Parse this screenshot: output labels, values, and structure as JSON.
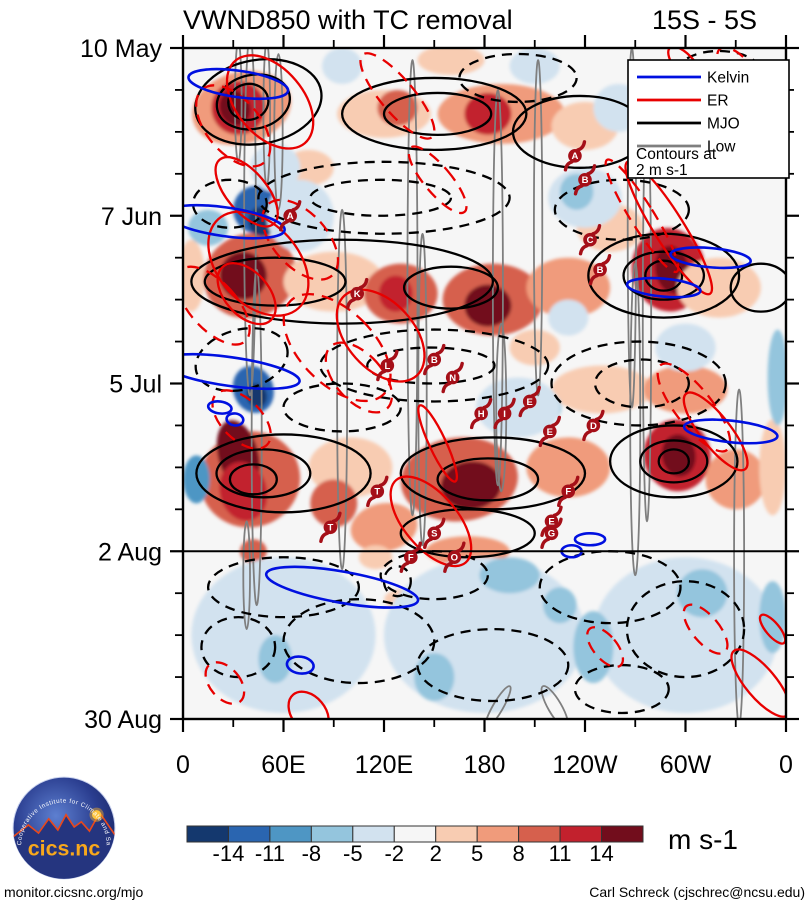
{
  "header": {
    "title": "VWND850 with TC removal",
    "subtitle": "15S - 5S"
  },
  "footer": {
    "left": "monitor.cicsnc.org/mjo",
    "right": "Carl Schreck (cjschrec@ncsu.edu)"
  },
  "logo": {
    "text": "cics.nc",
    "ring_text": "Cooperative Institute for Climate and Satellites"
  },
  "chart_data": {
    "type": "heatmap",
    "subtype": "hovmoller-time-longitude",
    "title": "VWND850 with TC removal",
    "latitude_band": "15S - 5S",
    "x": {
      "range": [
        0,
        360
      ],
      "ticks": [
        0,
        60,
        120,
        180,
        240,
        300,
        360
      ],
      "tick_labels": [
        "0",
        "60E",
        "120E",
        "180",
        "120W",
        "60W",
        "0"
      ],
      "minor_step": 30
    },
    "y": {
      "range_days": [
        0,
        112
      ],
      "ticks_days": [
        0,
        28,
        56,
        84,
        112
      ],
      "tick_labels": [
        "10 May",
        "7 Jun",
        "5 Jul",
        "2 Aug",
        "30 Aug"
      ],
      "minor_step_days": 7
    },
    "analysis_forecast_divider_day": 84,
    "colorbar": {
      "units": "m s-1",
      "boundaries": [
        -14,
        -11,
        -8,
        -5,
        -2,
        2,
        5,
        8,
        11,
        14
      ],
      "colors": [
        "#14386E",
        "#2A65B0",
        "#4E96C4",
        "#94C5DD",
        "#D2E2EF",
        "#F6F6F6",
        "#F8CCB2",
        "#F09B7B",
        "#D6604D",
        "#C2212D",
        "#720D1C"
      ]
    },
    "legend": {
      "entries": [
        {
          "label": "Kelvin",
          "color": "#0010E0"
        },
        {
          "label": "ER",
          "color": "#E80000"
        },
        {
          "label": "MJO",
          "color": "#000000"
        },
        {
          "label": "Low",
          "color": "#7F7F7F"
        }
      ],
      "note": [
        "Contours at",
        "2 m s-1"
      ]
    },
    "shading": [
      [
        35,
        10,
        30,
        6,
        -15,
        8
      ],
      [
        33,
        10,
        16,
        4.5,
        -20,
        10
      ],
      [
        31,
        10,
        9,
        3,
        -20,
        11
      ],
      [
        120,
        11,
        28,
        4,
        0,
        7
      ],
      [
        128,
        10,
        12,
        3,
        0,
        9
      ],
      [
        190,
        11,
        38,
        5,
        0,
        8
      ],
      [
        182,
        11,
        14,
        3.5,
        0,
        10
      ],
      [
        240,
        13,
        20,
        4,
        0,
        7
      ],
      [
        320,
        12,
        30,
        4,
        0,
        7
      ],
      [
        335,
        5,
        12,
        3,
        0,
        8
      ],
      [
        160,
        2,
        20,
        2.5,
        0,
        7
      ],
      [
        75,
        20,
        15,
        3,
        0,
        7
      ],
      [
        5,
        38,
        8,
        6,
        0,
        7
      ],
      [
        40,
        38,
        28,
        7,
        -20,
        9
      ],
      [
        36,
        38,
        14,
        4,
        -25,
        11
      ],
      [
        90,
        39,
        30,
        5,
        0,
        7
      ],
      [
        130,
        41,
        22,
        5,
        0,
        9
      ],
      [
        127,
        41,
        10,
        3,
        0,
        10
      ],
      [
        185,
        42,
        30,
        6,
        0,
        9
      ],
      [
        182,
        43,
        14,
        3.5,
        0,
        11
      ],
      [
        230,
        40,
        25,
        5,
        0,
        8
      ],
      [
        255,
        30,
        20,
        4,
        0,
        7
      ],
      [
        290,
        37,
        22,
        7,
        -10,
        10
      ],
      [
        292,
        37,
        10,
        4,
        -10,
        11
      ],
      [
        320,
        40,
        25,
        5,
        0,
        7
      ],
      [
        250,
        57,
        30,
        4,
        0,
        7
      ],
      [
        300,
        57,
        25,
        4,
        0,
        8
      ],
      [
        210,
        50,
        15,
        3,
        0,
        7
      ],
      [
        40,
        72,
        30,
        8,
        -15,
        9
      ],
      [
        33,
        68,
        12,
        6,
        -15,
        11
      ],
      [
        36,
        74,
        14,
        5,
        -15,
        10
      ],
      [
        100,
        70,
        25,
        5,
        0,
        7
      ],
      [
        90,
        76,
        14,
        4,
        0,
        9
      ],
      [
        165,
        72,
        35,
        7,
        -5,
        9
      ],
      [
        172,
        73,
        18,
        4,
        -5,
        11
      ],
      [
        230,
        70,
        25,
        5,
        0,
        8
      ],
      [
        295,
        68,
        20,
        6,
        -10,
        10
      ],
      [
        296,
        68,
        10,
        3.5,
        -10,
        11
      ],
      [
        330,
        72,
        18,
        5,
        0,
        8
      ],
      [
        352,
        70,
        8,
        8,
        0,
        7
      ],
      [
        120,
        80,
        20,
        4,
        -10,
        8
      ],
      [
        170,
        84,
        25,
        2.5,
        0,
        8
      ],
      [
        115,
        85,
        10,
        2,
        0,
        7
      ],
      [
        42,
        84,
        8,
        2,
        0,
        9
      ],
      [
        145,
        93,
        25,
        2.5,
        10,
        7
      ],
      [
        315,
        100,
        8,
        2.5,
        0,
        7
      ],
      [
        44,
        27,
        14,
        4,
        -20,
        2
      ],
      [
        47,
        29,
        8,
        2.5,
        -20,
        1
      ],
      [
        15,
        30,
        12,
        3,
        0,
        4
      ],
      [
        70,
        28,
        20,
        6,
        0,
        5
      ],
      [
        55,
        20,
        15,
        4,
        0,
        5
      ],
      [
        240,
        25,
        22,
        5,
        0,
        5
      ],
      [
        235,
        24,
        10,
        3,
        0,
        4
      ],
      [
        42,
        57,
        12,
        4,
        -20,
        2
      ],
      [
        44,
        58,
        6,
        2,
        -20,
        1
      ],
      [
        8,
        72,
        8,
        4,
        0,
        3
      ],
      [
        260,
        10,
        15,
        4,
        0,
        5
      ],
      [
        310,
        17,
        14,
        4,
        0,
        4
      ],
      [
        210,
        3,
        15,
        3,
        0,
        5
      ],
      [
        95,
        3,
        12,
        3,
        0,
        5
      ],
      [
        355,
        55,
        6,
        8,
        0,
        4
      ],
      [
        300,
        50,
        18,
        4,
        0,
        5
      ],
      [
        230,
        45,
        12,
        3,
        0,
        5
      ],
      [
        212,
        60,
        14,
        3,
        0,
        4
      ],
      [
        200,
        60,
        25,
        5,
        0,
        5
      ],
      [
        60,
        98,
        55,
        13,
        0,
        5
      ],
      [
        180,
        98,
        60,
        13,
        0,
        5
      ],
      [
        300,
        98,
        55,
        13,
        0,
        5
      ],
      [
        195,
        88,
        18,
        3,
        0,
        4
      ],
      [
        55,
        102,
        10,
        4,
        0,
        4
      ],
      [
        150,
        105,
        12,
        4,
        0,
        4
      ],
      [
        245,
        100,
        12,
        6,
        0,
        4
      ],
      [
        310,
        91,
        15,
        4,
        0,
        4
      ],
      [
        225,
        93,
        10,
        3,
        0,
        4
      ],
      [
        352,
        95,
        8,
        6,
        0,
        4
      ]
    ],
    "contours": {
      "mjo": [
        [
          45,
          9,
          38,
          7,
          -10,
          "s"
        ],
        [
          42,
          9,
          22,
          4.5,
          -12,
          "s"
        ],
        [
          39,
          9,
          12,
          3,
          -12,
          "s"
        ],
        [
          150,
          11,
          55,
          6,
          0,
          "s"
        ],
        [
          152,
          11,
          32,
          3.5,
          0,
          "s"
        ],
        [
          237,
          14,
          40,
          6,
          0,
          "s"
        ],
        [
          320,
          12,
          28,
          5,
          0,
          "s"
        ],
        [
          200,
          5,
          35,
          4,
          0,
          "d"
        ],
        [
          320,
          4,
          25,
          3.5,
          0,
          "d"
        ],
        [
          120,
          25,
          75,
          6,
          0,
          "d"
        ],
        [
          118,
          25,
          42,
          3,
          0,
          "d"
        ],
        [
          262,
          27,
          40,
          5,
          0,
          "d"
        ],
        [
          28,
          26,
          22,
          4,
          0,
          "d"
        ],
        [
          95,
          39,
          90,
          7,
          0,
          "s"
        ],
        [
          55,
          39,
          42,
          4,
          0,
          "s"
        ],
        [
          160,
          40,
          28,
          3.5,
          0,
          "s"
        ],
        [
          287,
          38,
          45,
          7,
          0,
          "s"
        ],
        [
          287,
          38,
          24,
          4,
          0,
          "s"
        ],
        [
          287,
          38,
          11,
          2.5,
          0,
          "s"
        ],
        [
          345,
          40,
          18,
          4,
          0,
          "s"
        ],
        [
          150,
          53,
          68,
          6,
          0,
          "d"
        ],
        [
          148,
          53,
          38,
          3,
          0,
          "d"
        ],
        [
          272,
          56,
          52,
          7,
          0,
          "d"
        ],
        [
          274,
          56,
          28,
          4,
          0,
          "d"
        ],
        [
          35,
          52,
          28,
          5,
          -15,
          "d"
        ],
        [
          95,
          60,
          35,
          4,
          0,
          "d"
        ],
        [
          60,
          71,
          52,
          6.5,
          0,
          "s"
        ],
        [
          48,
          71,
          28,
          4,
          0,
          "s"
        ],
        [
          42,
          72,
          14,
          2.5,
          0,
          "s"
        ],
        [
          185,
          71,
          55,
          6,
          0,
          "s"
        ],
        [
          182,
          72,
          30,
          3.5,
          0,
          "s"
        ],
        [
          293,
          69,
          38,
          6,
          0,
          "s"
        ],
        [
          293,
          69,
          20,
          3.5,
          0,
          "s"
        ],
        [
          293,
          69,
          9,
          2,
          0,
          "s"
        ],
        [
          170,
          81,
          40,
          4,
          0,
          "s"
        ],
        [
          60,
          90,
          45,
          5,
          0,
          "d"
        ],
        [
          150,
          88,
          32,
          4,
          0,
          "d"
        ],
        [
          128,
          89,
          8,
          2.5,
          0,
          "d"
        ],
        [
          255,
          90,
          42,
          6,
          0,
          "d"
        ],
        [
          105,
          99,
          45,
          7,
          0,
          "d"
        ],
        [
          33,
          100,
          22,
          5,
          0,
          "d"
        ],
        [
          185,
          103,
          45,
          6,
          0,
          "d"
        ],
        [
          300,
          97,
          35,
          8,
          0,
          "d"
        ],
        [
          262,
          107,
          28,
          4,
          0,
          "d"
        ]
      ],
      "er": [
        [
          52,
          9,
          20,
          9,
          -40,
          "s"
        ],
        [
          30,
          13,
          16,
          8,
          -40,
          "d"
        ],
        [
          128,
          8,
          10,
          9,
          -40,
          "d"
        ],
        [
          300,
          3,
          6,
          4,
          -40,
          "s"
        ],
        [
          332,
          4,
          8,
          5,
          -40,
          "d"
        ],
        [
          152,
          22,
          8,
          7,
          -40,
          "d"
        ],
        [
          38,
          24,
          12,
          7,
          -40,
          "s"
        ],
        [
          45,
          36,
          24,
          10,
          -42,
          "s"
        ],
        [
          38,
          41,
          13,
          6,
          -42,
          "s"
        ],
        [
          70,
          32,
          16,
          8,
          -42,
          "d"
        ],
        [
          18,
          43,
          14,
          8,
          -42,
          "d"
        ],
        [
          92,
          50,
          22,
          11,
          -45,
          "d"
        ],
        [
          118,
          48,
          20,
          9,
          -42,
          "s"
        ],
        [
          105,
          55,
          14,
          7,
          -42,
          "d"
        ],
        [
          35,
          62,
          12,
          6,
          -45,
          "d"
        ],
        [
          152,
          66,
          5,
          7,
          -25,
          "s"
        ],
        [
          148,
          79,
          16,
          9,
          -40,
          "s"
        ],
        [
          290,
          30,
          9,
          13,
          -32,
          "s"
        ],
        [
          274,
          28,
          7,
          11,
          -32,
          "d"
        ],
        [
          305,
          60,
          11,
          9,
          -38,
          "d"
        ],
        [
          318,
          64,
          9,
          8,
          -38,
          "s"
        ],
        [
          252,
          100,
          7,
          4,
          -40,
          "d"
        ],
        [
          312,
          97,
          8,
          5,
          -40,
          "d"
        ],
        [
          345,
          106,
          9,
          7,
          -40,
          "s"
        ],
        [
          352,
          97,
          4,
          3,
          -40,
          "s"
        ],
        [
          25,
          106,
          9,
          4,
          -40,
          "d"
        ],
        [
          75,
          111,
          10,
          4,
          -40,
          "s"
        ]
      ],
      "kelvin": [
        [
          33,
          6,
          30,
          2.2,
          8
        ],
        [
          25,
          29,
          36,
          2.4,
          8
        ],
        [
          28,
          54,
          42,
          2.4,
          8
        ],
        [
          95,
          90,
          46,
          2.6,
          10
        ],
        [
          70,
          103,
          8,
          1.4,
          8
        ],
        [
          315,
          35,
          24,
          1.6,
          5
        ],
        [
          327,
          64,
          28,
          1.8,
          6
        ],
        [
          287,
          40,
          22,
          1.5,
          5
        ],
        [
          243,
          82,
          9,
          1,
          0
        ],
        [
          232,
          84,
          6,
          1,
          0
        ],
        [
          22,
          60,
          7,
          1,
          8
        ],
        [
          31,
          62,
          5,
          1,
          8
        ]
      ],
      "low": [
        [
          40,
          28,
          3.5,
          30,
          0
        ],
        [
          44,
          65,
          3,
          28,
          0
        ],
        [
          38,
          88,
          2,
          9,
          0
        ],
        [
          33,
          9,
          2,
          10,
          0
        ],
        [
          50,
          11,
          2,
          12,
          0
        ],
        [
          57,
          14,
          2.5,
          13,
          0
        ],
        [
          95,
          57,
          3,
          30,
          0
        ],
        [
          137,
          40,
          3,
          38,
          0
        ],
        [
          143,
          57,
          2.5,
          26,
          0
        ],
        [
          188,
          40,
          3,
          33,
          0
        ],
        [
          190,
          60,
          3,
          14,
          0
        ],
        [
          212,
          30,
          2.5,
          28,
          0
        ],
        [
          268,
          30,
          2.5,
          30,
          0
        ],
        [
          277,
          45,
          2.5,
          34,
          0
        ],
        [
          270,
          62,
          3,
          26,
          0
        ],
        [
          332,
          85,
          3,
          28,
          0
        ],
        [
          222,
          110,
          4,
          4,
          -30
        ],
        [
          188,
          110,
          3,
          4,
          30
        ]
      ]
    },
    "cyclones": [
      [
        "A",
        64,
        28
      ],
      [
        "A",
        234,
        18
      ],
      [
        "B",
        240,
        22
      ],
      [
        "C",
        243,
        32
      ],
      [
        "B",
        249,
        37
      ],
      [
        "K",
        104,
        41
      ],
      [
        "L",
        122,
        53
      ],
      [
        "B",
        150,
        52
      ],
      [
        "N",
        161,
        55
      ],
      [
        "H",
        178,
        61
      ],
      [
        "I",
        192,
        61
      ],
      [
        "E",
        207,
        59
      ],
      [
        "E",
        219,
        64
      ],
      [
        "D",
        245,
        63
      ],
      [
        "T",
        116,
        74
      ],
      [
        "F",
        230,
        74
      ],
      [
        "E",
        220,
        79
      ],
      [
        "G",
        220,
        81
      ],
      [
        "S",
        150,
        81
      ],
      [
        "T",
        88,
        80
      ],
      [
        "F",
        136,
        85
      ],
      [
        "O",
        162,
        85
      ]
    ]
  }
}
